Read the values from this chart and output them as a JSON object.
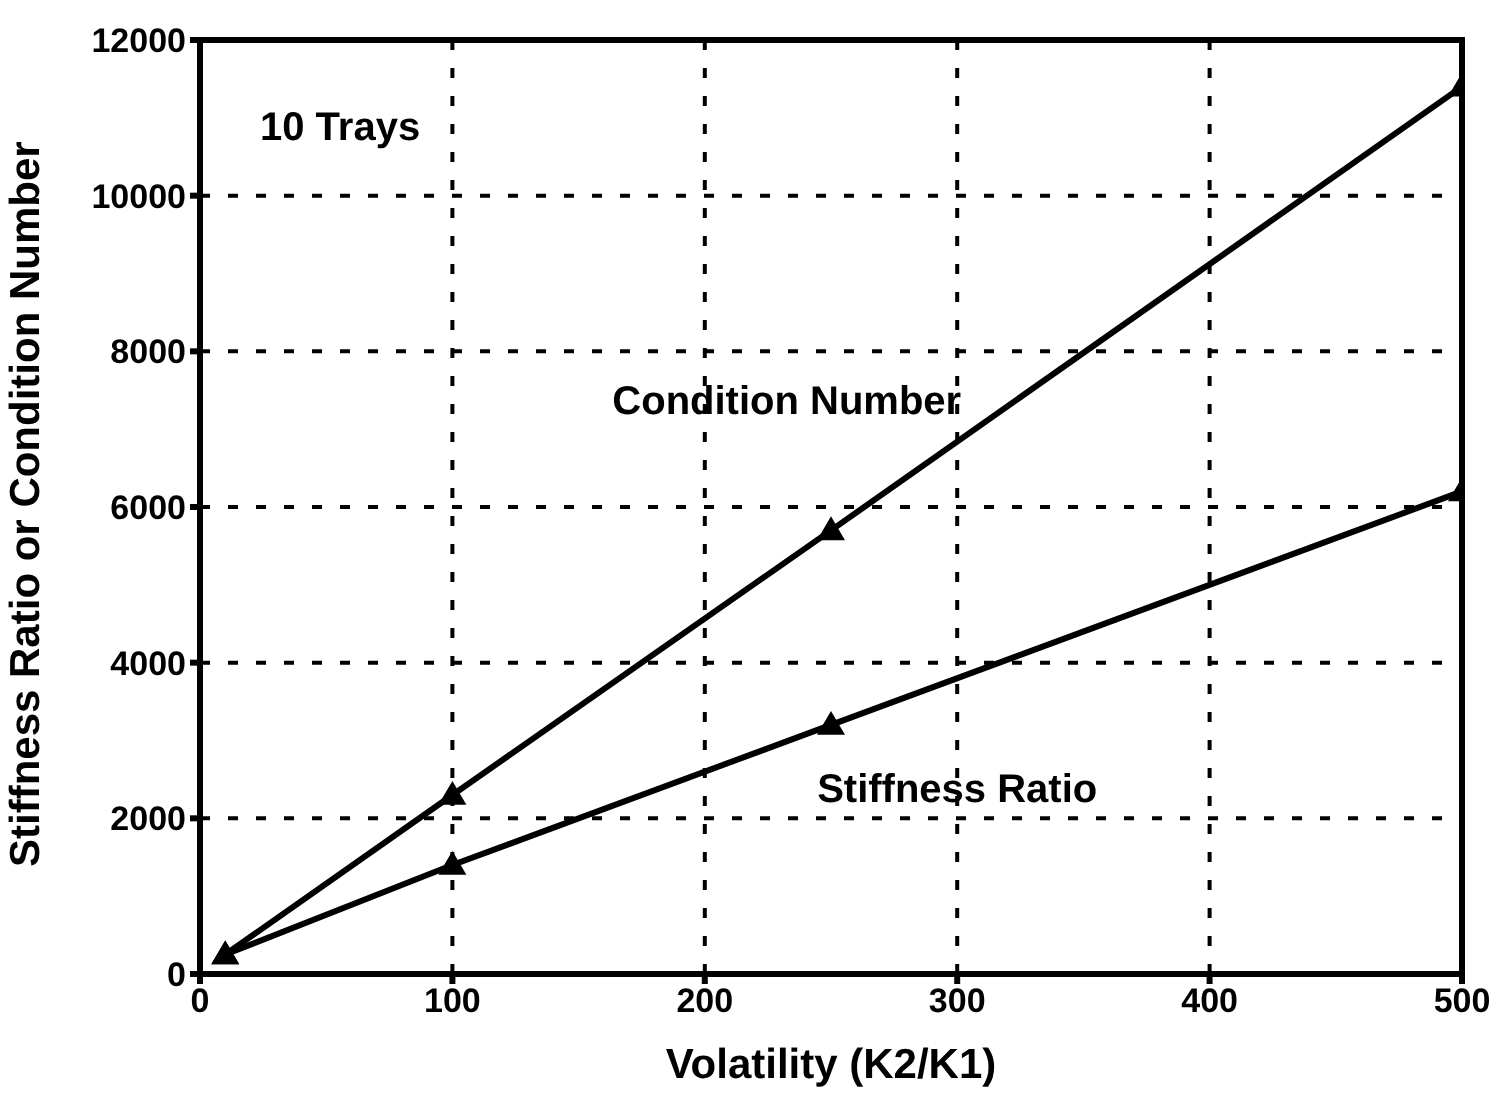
{
  "chart_data": {
    "type": "line",
    "xlabel": "Volatility (K2/K1)",
    "ylabel": "Stiffness Ratio or Condition Number",
    "annotations": [
      "10 Trays"
    ],
    "series": [
      {
        "name": "Condition Number",
        "color": "#000000",
        "marker": "triangle",
        "x": [
          10,
          100,
          250,
          500
        ],
        "values": [
          250,
          2300,
          5700,
          11400
        ]
      },
      {
        "name": "Stiffness Ratio",
        "color": "#000000",
        "marker": "triangle",
        "x": [
          10,
          100,
          250,
          500
        ],
        "values": [
          250,
          1400,
          3200,
          6200
        ]
      }
    ],
    "xlim": [
      0,
      500
    ],
    "xticks": [
      0,
      100,
      200,
      300,
      400,
      500
    ],
    "ylim": [
      0,
      12000
    ],
    "yticks": [
      0,
      2000,
      4000,
      6000,
      8000,
      10000,
      12000
    ],
    "grid": true
  }
}
